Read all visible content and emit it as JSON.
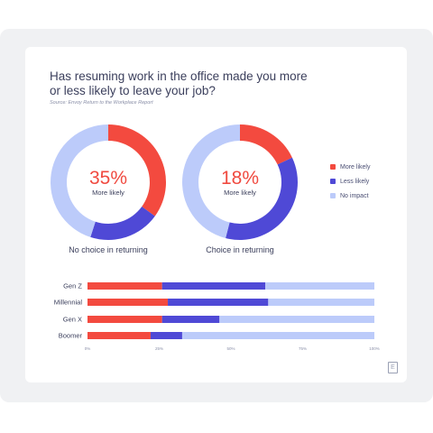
{
  "title": "Has resuming work in the office made you more or less likely to leave your job?",
  "source": "Source: Envoy Return to the Workplace Report",
  "colors": {
    "more_likely": "#f34a3f",
    "less_likely": "#4f49d6",
    "no_impact": "#bccbfa"
  },
  "legend": [
    {
      "label": "More likely",
      "color": "#f34a3f"
    },
    {
      "label": "Less likely",
      "color": "#4f49d6"
    },
    {
      "label": "No impact",
      "color": "#bccbfa"
    }
  ],
  "donuts": [
    {
      "percent_label": "35%",
      "sub_label": "More likely",
      "caption": "No choice in returning"
    },
    {
      "percent_label": "18%",
      "sub_label": "More likely",
      "caption": "Choice in returning"
    }
  ],
  "chart_data": [
    {
      "type": "pie",
      "categories": [
        "More likely",
        "Less likely",
        "No impact"
      ],
      "values": [
        35,
        20,
        45
      ],
      "title": "No choice in returning"
    },
    {
      "type": "pie",
      "categories": [
        "More likely",
        "Less likely",
        "No impact"
      ],
      "values": [
        18,
        36,
        46
      ],
      "title": "Choice in returning"
    },
    {
      "type": "bar",
      "orientation": "horizontal",
      "stacked": true,
      "categories": [
        "Gen Z",
        "Millennial",
        "Gen X",
        "Boomer"
      ],
      "series": [
        {
          "name": "More likely",
          "values": [
            26,
            28,
            26,
            22
          ]
        },
        {
          "name": "Less likely",
          "values": [
            36,
            35,
            20,
            11
          ]
        },
        {
          "name": "No impact",
          "values": [
            38,
            37,
            54,
            67
          ]
        }
      ],
      "xlim": [
        0,
        100
      ],
      "tick_labels": [
        "0%",
        "25%",
        "50%",
        "75%",
        "100%"
      ],
      "grid": false
    }
  ],
  "logo_text": "E"
}
